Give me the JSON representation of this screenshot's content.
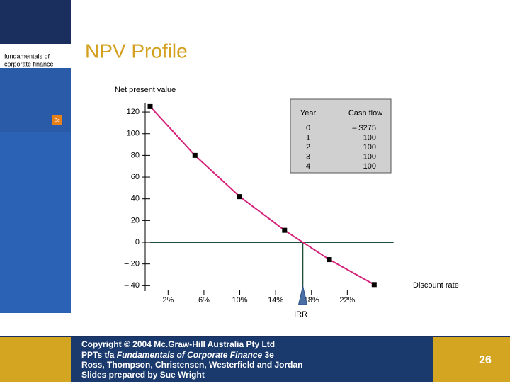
{
  "slide": {
    "title": "NPV Profile",
    "page_number": "26",
    "cover": {
      "line1": "fundamentals of",
      "line2": "corporate finance",
      "edition": "3e"
    },
    "footer": {
      "copyright": "Copyright © 2004 Mc.Graw-Hill Australia Pty Ltd",
      "ppts_prefix": "PPTs t/a ",
      "ppts_book": "Fundamentals of Corporate Finance",
      "ppts_suffix": " 3e",
      "authors": "Ross, Thompson, Christensen, Westerfield and Jordan",
      "prepared": "Slides prepared by Sue Wright"
    },
    "cash_flow_table": {
      "headers": [
        "Year",
        "Cash flow"
      ],
      "rows": [
        [
          "0",
          "– $275"
        ],
        [
          "1",
          "100"
        ],
        [
          "2",
          "100"
        ],
        [
          "3",
          "100"
        ],
        [
          "4",
          "100"
        ]
      ]
    }
  },
  "chart_data": {
    "type": "line",
    "y_label": "Net present value",
    "x_label": "Discount rate",
    "annotation": "IRR",
    "x": [
      0,
      5,
      10,
      15,
      20,
      25
    ],
    "series": [
      {
        "name": "NPV",
        "color": "#d4217a",
        "values": [
          125,
          80,
          42,
          11,
          -16,
          -39
        ]
      }
    ],
    "xlim": [
      0,
      27
    ],
    "ylim": [
      -45,
      128
    ],
    "xticks": [
      {
        "value": 2,
        "label": "2%"
      },
      {
        "value": 6,
        "label": "6%"
      },
      {
        "value": 10,
        "label": "10%"
      },
      {
        "value": 14,
        "label": "14%"
      },
      {
        "value": 18,
        "label": "18%"
      },
      {
        "value": 22,
        "label": "22%"
      }
    ],
    "yticks": [
      120,
      100,
      80,
      60,
      40,
      20,
      0,
      {
        "value": -20,
        "label": "– 20"
      },
      {
        "value": -40,
        "label": "– 40"
      }
    ]
  }
}
